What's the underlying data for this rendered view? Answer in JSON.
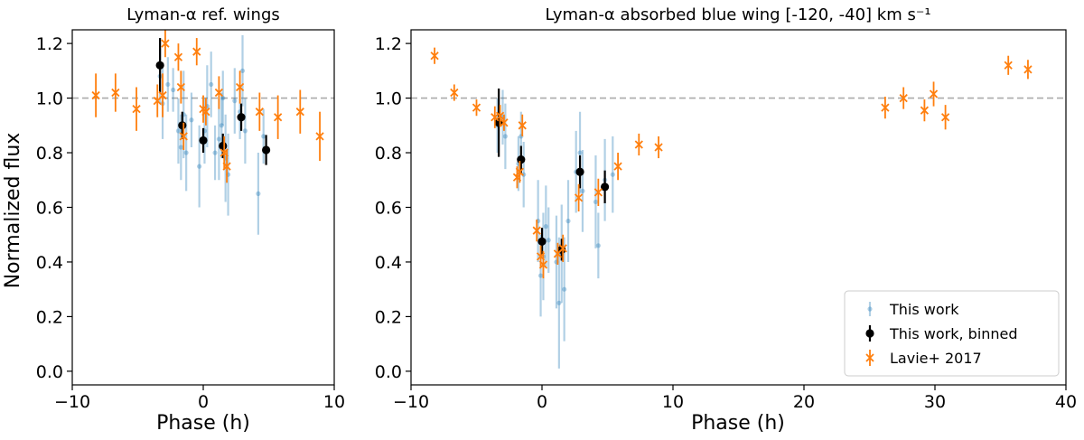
{
  "colors": {
    "this_work": "#1f77b4",
    "binned": "#000000",
    "lavie": "#ff7f0e",
    "reference_line": "#aaaaaa"
  },
  "shared": {
    "ylabel": "Normalized flux",
    "ylim": [
      -0.05,
      1.25
    ],
    "yticks": [
      0.0,
      0.2,
      0.4,
      0.6,
      0.8,
      1.0,
      1.2
    ],
    "reference_level": 1.0
  },
  "chart_data": [
    {
      "id": "left",
      "type": "scatter",
      "title": "Lyman-α ref. wings",
      "xlabel": "Phase (h)",
      "xlim": [
        -10,
        10
      ],
      "xticks": [
        -10,
        0,
        10
      ],
      "grid": false,
      "series": [
        {
          "name": "This work",
          "style": "faint-dot",
          "points": [
            {
              "x": -3.3,
              "y": 1.08,
              "err": 0.1
            },
            {
              "x": -3.1,
              "y": 0.98,
              "err": 0.13
            },
            {
              "x": -2.7,
              "y": 1.05,
              "err": 0.1
            },
            {
              "x": -2.3,
              "y": 1.03,
              "err": 0.08
            },
            {
              "x": -1.9,
              "y": 0.88,
              "err": 0.12
            },
            {
              "x": -1.7,
              "y": 0.82,
              "err": 0.12
            },
            {
              "x": -1.5,
              "y": 0.94,
              "err": 0.16
            },
            {
              "x": -1.3,
              "y": 0.8,
              "err": 0.14
            },
            {
              "x": -0.9,
              "y": 0.92,
              "err": 0.1
            },
            {
              "x": -0.3,
              "y": 0.75,
              "err": 0.15
            },
            {
              "x": 0.1,
              "y": 0.88,
              "err": 0.12
            },
            {
              "x": 0.3,
              "y": 0.97,
              "err": 0.15
            },
            {
              "x": 0.6,
              "y": 1.05,
              "err": 0.12
            },
            {
              "x": 0.9,
              "y": 0.8,
              "err": 0.1
            },
            {
              "x": 1.2,
              "y": 0.85,
              "err": 0.15
            },
            {
              "x": 1.4,
              "y": 0.9,
              "err": 0.12
            },
            {
              "x": 1.5,
              "y": 1.0,
              "err": 0.1
            },
            {
              "x": 1.7,
              "y": 0.78,
              "err": 0.16
            },
            {
              "x": 1.9,
              "y": 0.72,
              "err": 0.15
            },
            {
              "x": 2.4,
              "y": 0.99,
              "err": 0.12
            },
            {
              "x": 2.8,
              "y": 0.95,
              "err": 0.1
            },
            {
              "x": 3.0,
              "y": 1.1,
              "err": 0.13
            },
            {
              "x": 3.2,
              "y": 0.88,
              "err": 0.12
            },
            {
              "x": 4.2,
              "y": 0.65,
              "err": 0.15
            },
            {
              "x": 4.6,
              "y": 0.86,
              "err": 0.1
            }
          ]
        },
        {
          "name": "This work, binned",
          "style": "big-dot",
          "points": [
            {
              "x": -3.3,
              "y": 1.12,
              "err": 0.1
            },
            {
              "x": -1.6,
              "y": 0.9,
              "err": 0.05
            },
            {
              "x": 0.0,
              "y": 0.845,
              "err": 0.045
            },
            {
              "x": 1.5,
              "y": 0.825,
              "err": 0.045
            },
            {
              "x": 2.9,
              "y": 0.93,
              "err": 0.05
            },
            {
              "x": 4.8,
              "y": 0.81,
              "err": 0.055
            }
          ]
        },
        {
          "name": "Lavie+ 2017",
          "style": "cross",
          "points": [
            {
              "x": -8.2,
              "y": 1.01,
              "err": 0.08
            },
            {
              "x": -6.7,
              "y": 1.02,
              "err": 0.07
            },
            {
              "x": -5.1,
              "y": 0.96,
              "err": 0.08
            },
            {
              "x": -3.5,
              "y": 0.99,
              "err": 0.06
            },
            {
              "x": -3.1,
              "y": 1.01,
              "err": 0.08
            },
            {
              "x": -2.9,
              "y": 1.2,
              "err": 0.05
            },
            {
              "x": -1.9,
              "y": 1.15,
              "err": 0.05
            },
            {
              "x": -1.7,
              "y": 1.04,
              "err": 0.06
            },
            {
              "x": -1.5,
              "y": 0.86,
              "err": 0.05
            },
            {
              "x": -0.5,
              "y": 1.17,
              "err": 0.05
            },
            {
              "x": 0.0,
              "y": 0.96,
              "err": 0.05
            },
            {
              "x": 0.2,
              "y": 0.95,
              "err": 0.05
            },
            {
              "x": 1.2,
              "y": 1.02,
              "err": 0.06
            },
            {
              "x": 1.6,
              "y": 0.8,
              "err": 0.06
            },
            {
              "x": 1.8,
              "y": 0.75,
              "err": 0.06
            },
            {
              "x": 2.8,
              "y": 1.04,
              "err": 0.06
            },
            {
              "x": 4.3,
              "y": 0.95,
              "err": 0.07
            },
            {
              "x": 5.7,
              "y": 0.93,
              "err": 0.08
            },
            {
              "x": 7.4,
              "y": 0.95,
              "err": 0.08
            },
            {
              "x": 8.9,
              "y": 0.86,
              "err": 0.09
            }
          ]
        }
      ]
    },
    {
      "id": "right",
      "type": "scatter",
      "title": "Lyman-α absorbed blue wing [-120, -40] km s⁻¹",
      "xlabel": "Phase (h)",
      "xlim": [
        -10,
        40
      ],
      "xticks": [
        -10,
        0,
        10,
        20,
        30,
        40
      ],
      "grid": false,
      "legend": {
        "placement": "lower-right",
        "entries": [
          "This work",
          "This work, binned",
          "Lavie+ 2017"
        ]
      },
      "series": [
        {
          "name": "This work",
          "style": "faint-dot",
          "points": [
            {
              "x": -3.4,
              "y": 0.9,
              "err": 0.1
            },
            {
              "x": -3.0,
              "y": 0.93,
              "err": 0.1
            },
            {
              "x": -2.8,
              "y": 0.86,
              "err": 0.12
            },
            {
              "x": -1.8,
              "y": 0.76,
              "err": 0.1
            },
            {
              "x": -1.6,
              "y": 0.86,
              "err": 0.09
            },
            {
              "x": -1.4,
              "y": 0.72,
              "err": 0.12
            },
            {
              "x": -0.3,
              "y": 0.55,
              "err": 0.15
            },
            {
              "x": -0.1,
              "y": 0.35,
              "err": 0.15
            },
            {
              "x": 0.1,
              "y": 0.42,
              "err": 0.16
            },
            {
              "x": 0.3,
              "y": 0.53,
              "err": 0.15
            },
            {
              "x": 0.5,
              "y": 0.48,
              "err": 0.12
            },
            {
              "x": 1.1,
              "y": 0.4,
              "err": 0.17
            },
            {
              "x": 1.3,
              "y": 0.25,
              "err": 0.24
            },
            {
              "x": 1.5,
              "y": 0.43,
              "err": 0.18
            },
            {
              "x": 1.7,
              "y": 0.3,
              "err": 0.19
            },
            {
              "x": 2.0,
              "y": 0.55,
              "err": 0.15
            },
            {
              "x": 2.6,
              "y": 0.73,
              "err": 0.15
            },
            {
              "x": 2.9,
              "y": 0.8,
              "err": 0.15
            },
            {
              "x": 3.1,
              "y": 0.66,
              "err": 0.15
            },
            {
              "x": 4.1,
              "y": 0.62,
              "err": 0.17
            },
            {
              "x": 4.3,
              "y": 0.46,
              "err": 0.12
            },
            {
              "x": 4.8,
              "y": 0.7,
              "err": 0.15
            },
            {
              "x": 5.4,
              "y": 0.72,
              "err": 0.14
            }
          ]
        },
        {
          "name": "This work, binned",
          "style": "big-dot",
          "points": [
            {
              "x": -3.3,
              "y": 0.91,
              "err": 0.125
            },
            {
              "x": -1.6,
              "y": 0.775,
              "err": 0.05
            },
            {
              "x": 0.0,
              "y": 0.475,
              "err": 0.05
            },
            {
              "x": 1.5,
              "y": 0.445,
              "err": 0.04
            },
            {
              "x": 2.9,
              "y": 0.73,
              "err": 0.06
            },
            {
              "x": 4.8,
              "y": 0.675,
              "err": 0.06
            }
          ]
        },
        {
          "name": "Lavie+ 2017",
          "style": "cross",
          "points": [
            {
              "x": -8.2,
              "y": 1.155,
              "err": 0.03
            },
            {
              "x": -6.7,
              "y": 1.02,
              "err": 0.03
            },
            {
              "x": -5.0,
              "y": 0.965,
              "err": 0.03
            },
            {
              "x": -3.6,
              "y": 0.93,
              "err": 0.04
            },
            {
              "x": -3.2,
              "y": 0.935,
              "err": 0.04
            },
            {
              "x": -2.9,
              "y": 0.91,
              "err": 0.03
            },
            {
              "x": -1.9,
              "y": 0.71,
              "err": 0.04
            },
            {
              "x": -1.7,
              "y": 0.73,
              "err": 0.04
            },
            {
              "x": -1.5,
              "y": 0.9,
              "err": 0.04
            },
            {
              "x": -0.4,
              "y": 0.515,
              "err": 0.04
            },
            {
              "x": -0.1,
              "y": 0.42,
              "err": 0.04
            },
            {
              "x": 0.1,
              "y": 0.39,
              "err": 0.05
            },
            {
              "x": 1.2,
              "y": 0.43,
              "err": 0.04
            },
            {
              "x": 1.6,
              "y": 0.45,
              "err": 0.05
            },
            {
              "x": 2.8,
              "y": 0.635,
              "err": 0.05
            },
            {
              "x": 4.3,
              "y": 0.655,
              "err": 0.05
            },
            {
              "x": 5.8,
              "y": 0.75,
              "err": 0.05
            },
            {
              "x": 7.4,
              "y": 0.83,
              "err": 0.04
            },
            {
              "x": 8.9,
              "y": 0.82,
              "err": 0.04
            },
            {
              "x": 26.2,
              "y": 0.965,
              "err": 0.04
            },
            {
              "x": 27.6,
              "y": 1.0,
              "err": 0.04
            },
            {
              "x": 29.2,
              "y": 0.955,
              "err": 0.04
            },
            {
              "x": 29.9,
              "y": 1.015,
              "err": 0.045
            },
            {
              "x": 30.8,
              "y": 0.93,
              "err": 0.045
            },
            {
              "x": 35.6,
              "y": 1.12,
              "err": 0.035
            },
            {
              "x": 37.1,
              "y": 1.105,
              "err": 0.035
            }
          ]
        }
      ]
    }
  ]
}
